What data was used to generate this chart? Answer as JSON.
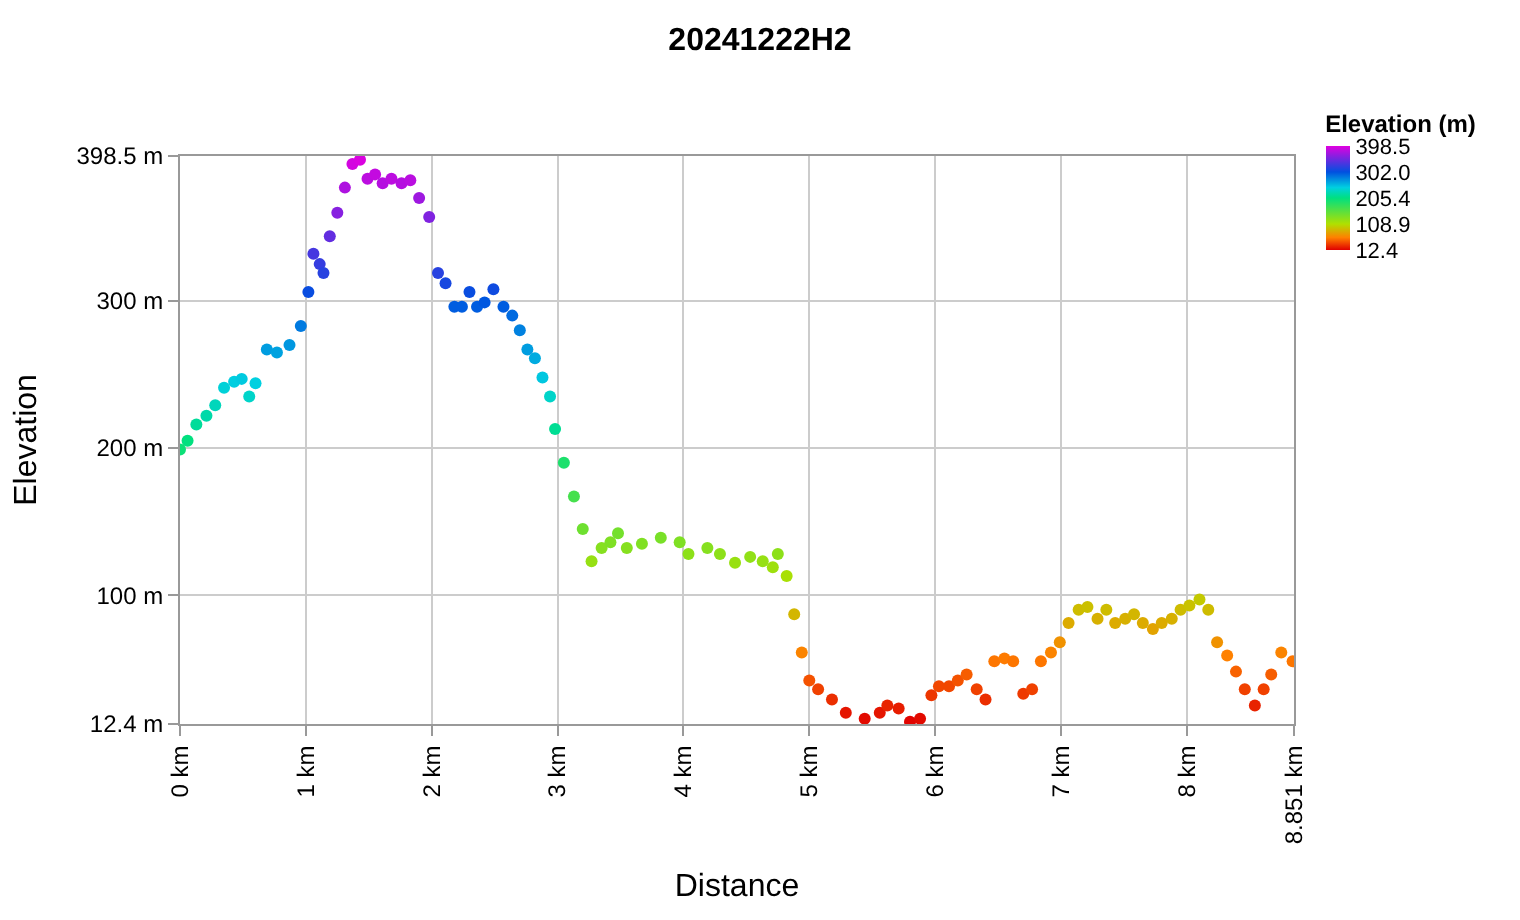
{
  "chart_data": {
    "type": "scatter",
    "title": "20241222H2",
    "xlabel": "Distance",
    "ylabel": "Elevation",
    "clabel": "Elevation (m)",
    "x": [
      0,
      0.06,
      0.13,
      0.21,
      0.28,
      0.35,
      0.43,
      0.49,
      0.55,
      0.6,
      0.69,
      0.77,
      0.87,
      0.96,
      1.02,
      1.06,
      1.11,
      1.14,
      1.19,
      1.25,
      1.31,
      1.37,
      1.43,
      1.49,
      1.55,
      1.61,
      1.68,
      1.76,
      1.83,
      1.9,
      1.98,
      2.05,
      2.11,
      2.18,
      2.24,
      2.3,
      2.36,
      2.42,
      2.49,
      2.57,
      2.64,
      2.7,
      2.76,
      2.82,
      2.88,
      2.94,
      2.98,
      3.05,
      3.13,
      3.2,
      3.27,
      3.35,
      3.42,
      3.48,
      3.55,
      3.67,
      3.82,
      3.97,
      4.04,
      4.19,
      4.29,
      4.41,
      4.53,
      4.63,
      4.71,
      4.75,
      4.82,
      4.88,
      4.94,
      5.0,
      5.07,
      5.18,
      5.29,
      5.44,
      5.56,
      5.62,
      5.71,
      5.8,
      5.88,
      5.97,
      6.03,
      6.11,
      6.18,
      6.25,
      6.33,
      6.4,
      6.47,
      6.55,
      6.62,
      6.7,
      6.77,
      6.84,
      6.92,
      6.99,
      7.06,
      7.14,
      7.21,
      7.29,
      7.36,
      7.43,
      7.51,
      7.58,
      7.65,
      7.73,
      7.8,
      7.88,
      7.95,
      8.02,
      8.1,
      8.17,
      8.24,
      8.32,
      8.39,
      8.46,
      8.54,
      8.61,
      8.67,
      8.75,
      8.84
    ],
    "values": [
      199,
      205,
      216,
      222,
      229,
      241,
      245,
      247,
      235,
      244,
      267,
      265,
      270,
      283,
      306,
      332,
      325,
      319,
      344,
      360,
      377,
      393,
      396,
      383,
      386,
      380,
      383,
      380,
      382,
      370,
      357,
      319,
      312,
      296,
      296,
      306,
      296,
      299,
      308,
      296,
      290,
      280,
      267,
      261,
      248,
      235,
      213,
      190,
      167,
      145,
      123,
      132,
      136,
      142,
      132,
      135,
      139,
      136,
      128,
      132,
      128,
      122,
      126,
      123,
      119,
      128,
      113,
      87,
      61,
      42,
      36,
      29,
      20,
      16,
      20,
      25,
      23,
      14,
      16,
      32,
      38,
      38,
      42,
      46,
      36,
      29,
      55,
      57,
      55,
      33,
      36,
      55,
      61,
      68,
      81,
      90,
      92,
      84,
      90,
      81,
      84,
      87,
      81,
      77,
      81,
      84,
      90,
      93,
      97,
      90,
      68,
      59,
      48,
      36,
      25,
      36,
      46,
      61,
      55
    ],
    "cvalues": [
      199,
      205,
      216,
      222,
      229,
      241,
      245,
      247,
      235,
      244,
      267,
      265,
      270,
      283,
      306,
      332,
      325,
      319,
      344,
      360,
      377,
      393,
      396,
      383,
      386,
      380,
      383,
      380,
      382,
      370,
      357,
      319,
      312,
      296,
      296,
      306,
      296,
      299,
      308,
      296,
      290,
      280,
      267,
      261,
      248,
      235,
      213,
      190,
      167,
      145,
      123,
      132,
      136,
      142,
      132,
      135,
      139,
      136,
      128,
      132,
      128,
      122,
      126,
      123,
      119,
      128,
      113,
      87,
      61,
      42,
      36,
      29,
      20,
      16,
      20,
      25,
      23,
      14,
      16,
      32,
      38,
      38,
      42,
      46,
      36,
      29,
      55,
      57,
      55,
      33,
      36,
      55,
      61,
      68,
      81,
      90,
      92,
      84,
      90,
      81,
      84,
      87,
      81,
      77,
      81,
      84,
      90,
      93,
      97,
      90,
      68,
      59,
      48,
      36,
      25,
      36,
      46,
      61,
      55
    ],
    "clim": [
      12.4,
      398.5
    ],
    "cticks": [
      {
        "value": 12.4,
        "label": "12.4"
      },
      {
        "value": 108.9,
        "label": "108.9"
      },
      {
        "value": 205.4,
        "label": "205.4"
      },
      {
        "value": 302,
        "label": "302.0"
      },
      {
        "value": 398.5,
        "label": "398.5"
      }
    ],
    "xlim": [
      0,
      8.851
    ],
    "xticks": [
      {
        "value": 0,
        "label": "0 km"
      },
      {
        "value": 1,
        "label": "1 km"
      },
      {
        "value": 2,
        "label": "2 km"
      },
      {
        "value": 3,
        "label": "3 km"
      },
      {
        "value": 4,
        "label": "4 km"
      },
      {
        "value": 5,
        "label": "5 km"
      },
      {
        "value": 6,
        "label": "6 km"
      },
      {
        "value": 7,
        "label": "7 km"
      },
      {
        "value": 8,
        "label": "8 km"
      },
      {
        "value": 8.851,
        "label": "8.851 km"
      }
    ],
    "ylim": [
      12.4,
      398.5
    ],
    "yticks": [
      {
        "value": 12.4,
        "label": "12.4 m"
      },
      {
        "value": 100,
        "label": "100 m"
      },
      {
        "value": 200,
        "label": "200 m"
      },
      {
        "value": 300,
        "label": "300 m"
      },
      {
        "value": 398.5,
        "label": "398.5 m"
      }
    ],
    "grid": true
  }
}
